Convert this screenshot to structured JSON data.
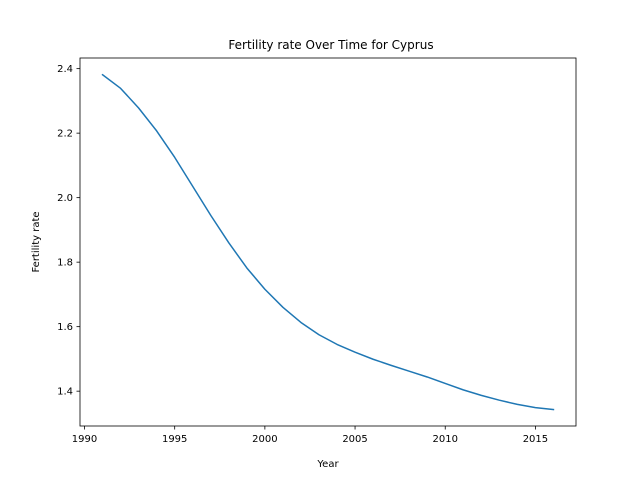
{
  "chart_data": {
    "type": "line",
    "title": "Fertility rate Over Time for Cyprus",
    "xlabel": "Year",
    "ylabel": "Fertility rate",
    "xlim": [
      1989.75,
      2017.25
    ],
    "ylim": [
      1.292,
      2.433
    ],
    "xticks": [
      1990,
      1995,
      2000,
      2005,
      2010,
      2015
    ],
    "yticks": [
      1.4,
      1.6,
      1.8,
      2.0,
      2.2,
      2.4
    ],
    "ytick_labels": [
      "1.4",
      "1.6",
      "1.8",
      "2.0",
      "2.2",
      "2.4"
    ],
    "grid": false,
    "series": [
      {
        "color": "#1f77b4",
        "x": [
          1991,
          1992,
          1993,
          1994,
          1995,
          1996,
          1997,
          1998,
          1999,
          2000,
          2001,
          2002,
          2003,
          2004,
          2005,
          2006,
          2007,
          2008,
          2009,
          2010,
          2011,
          2012,
          2013,
          2014,
          2015,
          2016
        ],
        "y": [
          2.381,
          2.339,
          2.278,
          2.207,
          2.125,
          2.035,
          1.945,
          1.86,
          1.782,
          1.716,
          1.66,
          1.613,
          1.575,
          1.545,
          1.521,
          1.499,
          1.48,
          1.462,
          1.444,
          1.424,
          1.404,
          1.387,
          1.372,
          1.359,
          1.349,
          1.343
        ]
      }
    ]
  }
}
